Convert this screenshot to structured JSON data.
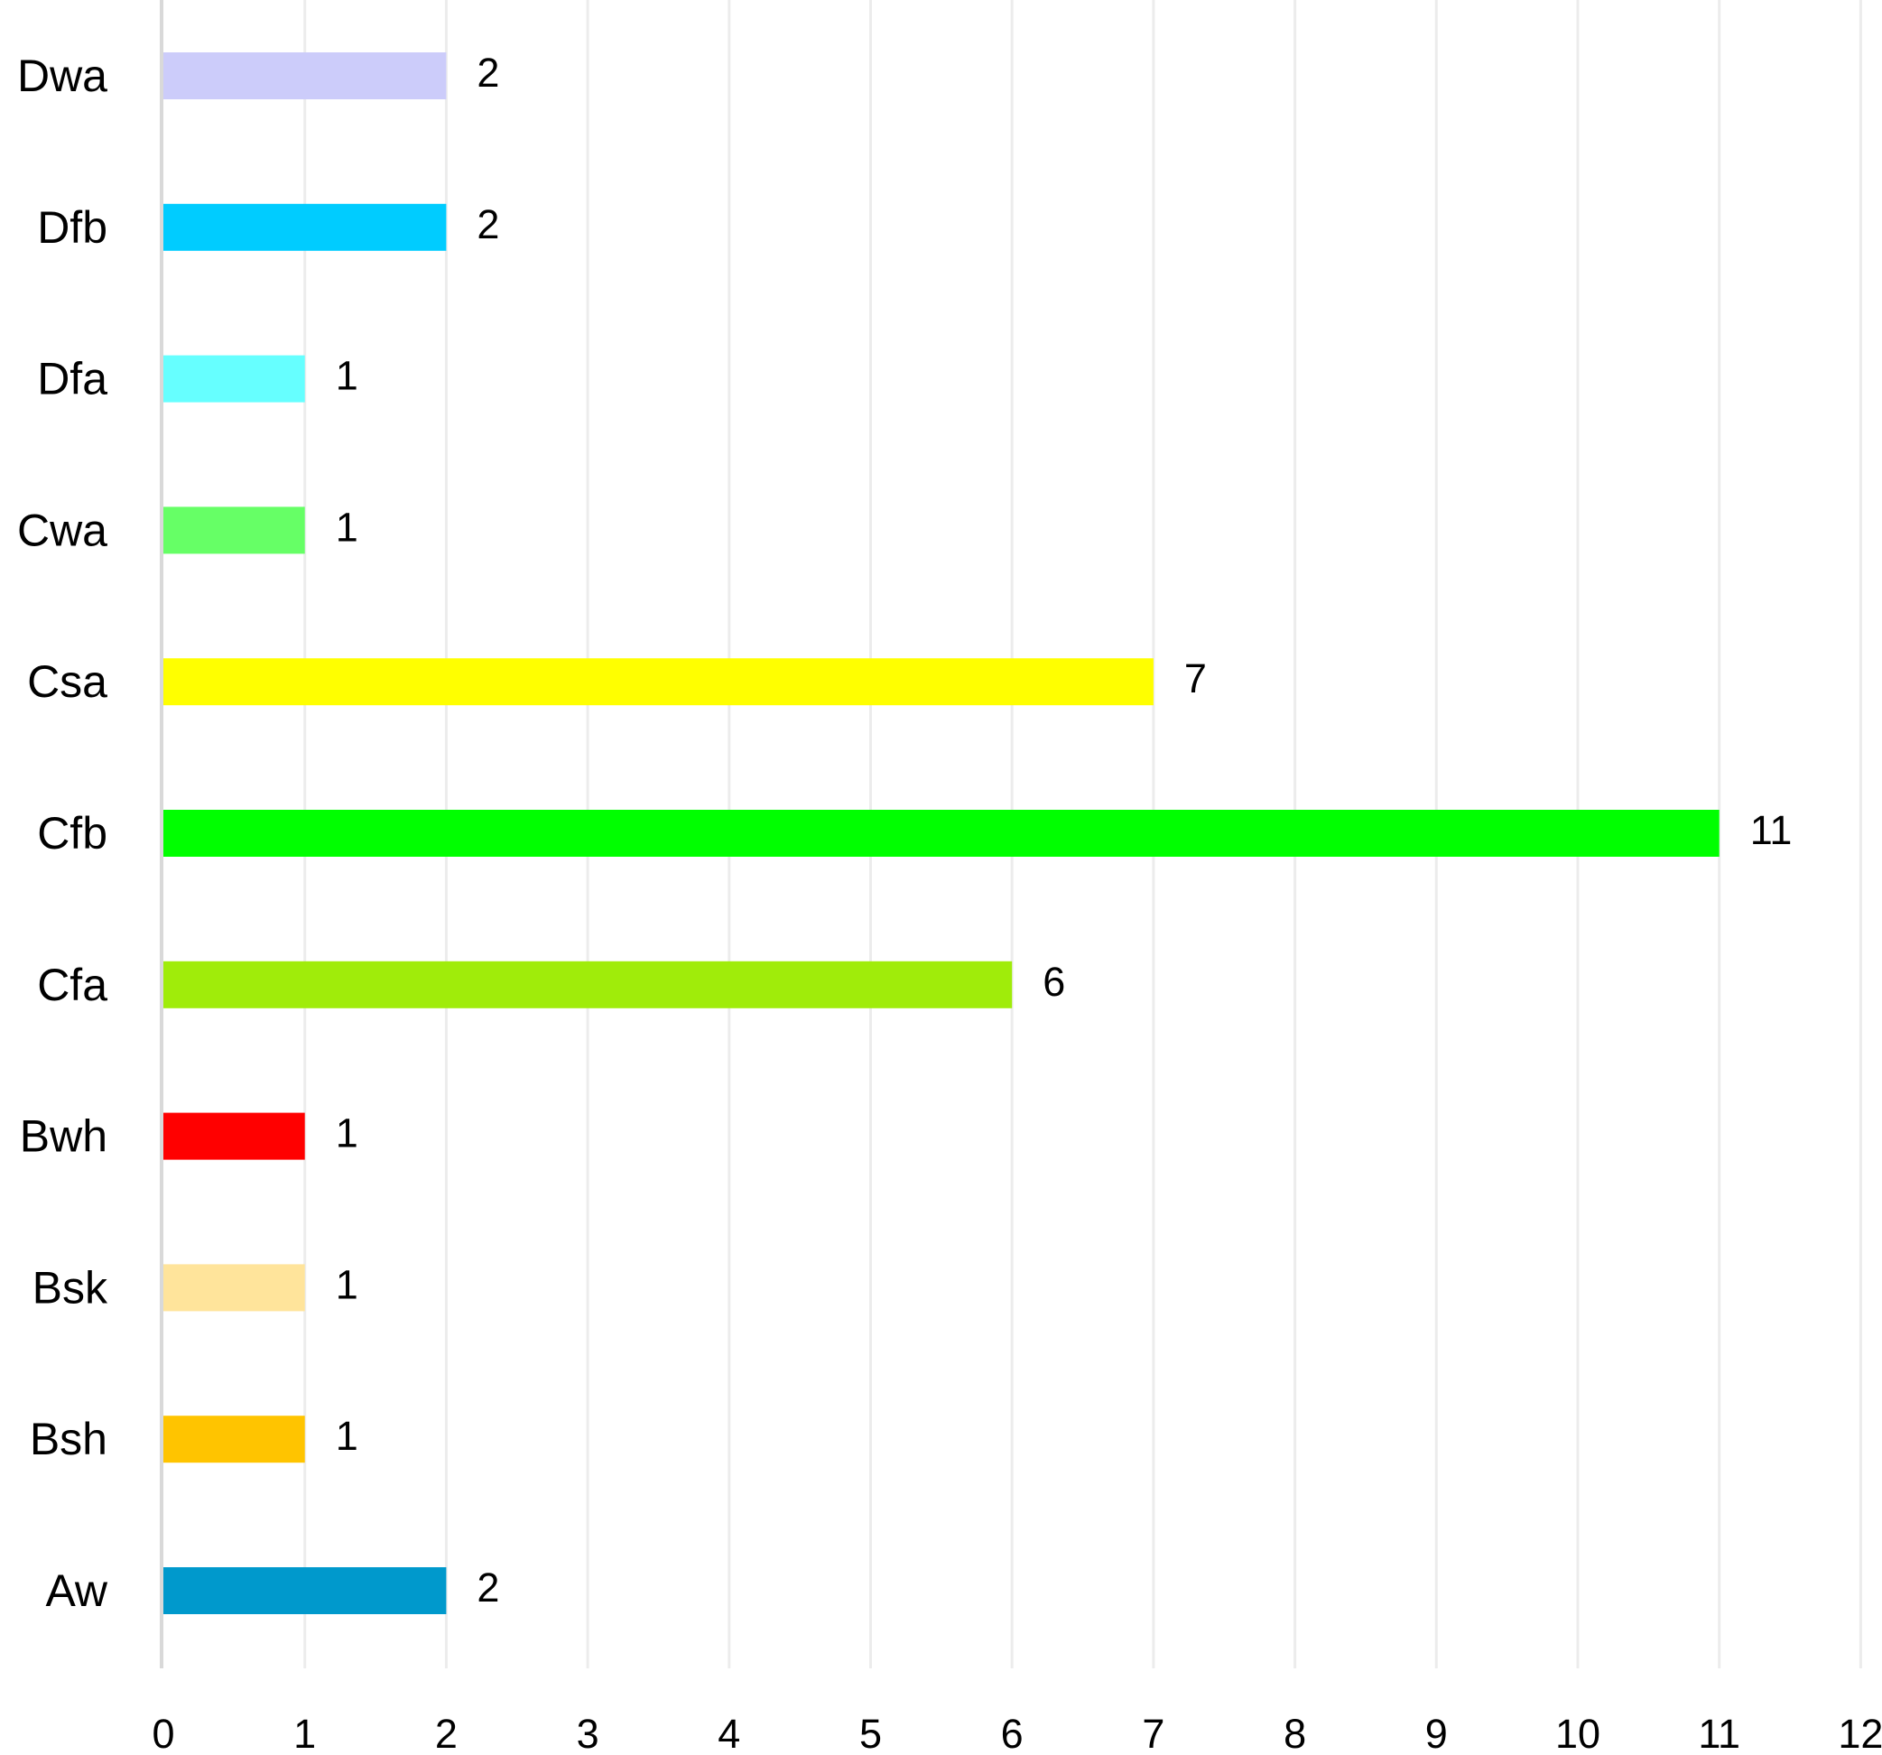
{
  "chart_data": {
    "type": "bar",
    "orientation": "horizontal",
    "title": "",
    "xlabel": "",
    "ylabel": "",
    "categories": [
      "Dwa",
      "Dfb",
      "Dfa",
      "Cwa",
      "Csa",
      "Cfb",
      "Cfa",
      "Bwh",
      "Bsk",
      "Bsh",
      "Aw"
    ],
    "values": [
      2,
      2,
      1,
      1,
      7,
      11,
      6,
      1,
      1,
      1,
      2
    ],
    "colors": [
      "#ccccfa",
      "#00ccff",
      "#66ffff",
      "#66ff66",
      "#ffff00",
      "#00ff00",
      "#a0ec0a",
      "#ff0000",
      "#ffe49b",
      "#ffc400",
      "#0099cc"
    ],
    "data_labels": [
      "2",
      "2",
      "1",
      "1",
      "7",
      "11",
      "6",
      "1",
      "1",
      "1",
      "2"
    ],
    "xlim": [
      0,
      12
    ],
    "xticks": [
      0,
      1,
      2,
      3,
      4,
      5,
      6,
      7,
      8,
      9,
      10,
      11,
      12
    ],
    "xtick_labels": [
      "0",
      "1",
      "2",
      "3",
      "4",
      "5",
      "6",
      "7",
      "8",
      "9",
      "10",
      "11",
      "12"
    ],
    "grid": "vertical",
    "grid_color": "#ececec",
    "axis_color": "#d9d9d9",
    "legend": "none"
  }
}
